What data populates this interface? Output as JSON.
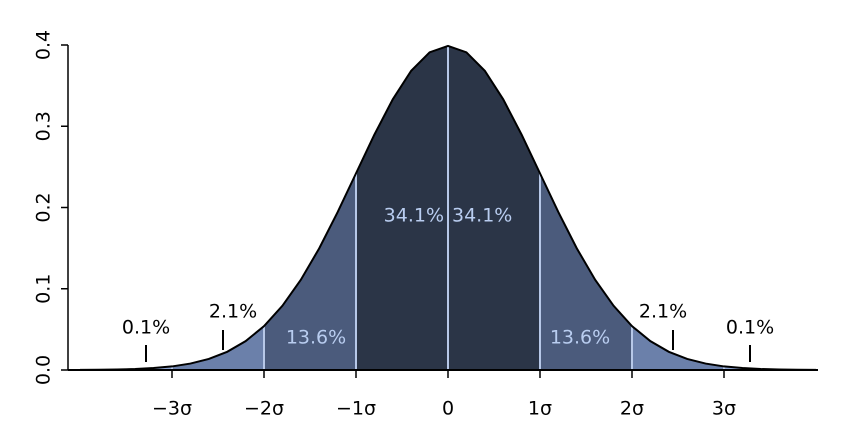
{
  "chart_data": {
    "type": "density",
    "x": [
      -4,
      -3.8,
      -3.6,
      -3.4,
      -3.2,
      -3,
      -2.8,
      -2.6,
      -2.4,
      -2.2,
      -2,
      -1.8,
      -1.6,
      -1.4,
      -1.2,
      -1,
      -0.8,
      -0.6,
      -0.4,
      -0.2,
      0,
      0.2,
      0.4,
      0.6,
      0.8,
      1,
      1.2,
      1.4,
      1.6,
      1.8,
      2,
      2.2,
      2.4,
      2.6,
      2.8,
      3,
      3.2,
      3.4,
      3.6,
      3.8,
      4
    ],
    "values": [
      0.0001,
      0.0003,
      0.0006,
      0.0012,
      0.0024,
      0.0044,
      0.0079,
      0.0136,
      0.0224,
      0.0355,
      0.054,
      0.079,
      0.1109,
      0.1497,
      0.1942,
      0.242,
      0.2897,
      0.3332,
      0.3683,
      0.391,
      0.3989,
      0.391,
      0.3683,
      0.3332,
      0.2897,
      0.242,
      0.1942,
      0.1497,
      0.1109,
      0.079,
      0.054,
      0.0355,
      0.0224,
      0.0136,
      0.0079,
      0.0044,
      0.0024,
      0.0012,
      0.0006,
      0.0003,
      0.0001
    ],
    "color": "#000000",
    "regions": {
      "bounds": [
        -4,
        -3,
        -2,
        -1,
        0,
        1,
        2,
        3,
        4
      ],
      "colors": [
        "#8ca3d0",
        "#6b80aa",
        "#4b5b7c",
        "#2b3547",
        "#2b3547",
        "#4b5b7c",
        "#6b80aa",
        "#8ca3d0"
      ],
      "values": [
        0.1,
        2.1,
        13.6,
        34.1,
        34.1,
        13.6,
        2.1,
        0.1
      ],
      "value_labels": [
        "0.1%",
        "2.1%",
        "13.6%",
        "34.1%",
        "34.1%",
        "13.6%",
        "2.1%",
        "0.1%"
      ]
    },
    "xlim": [
      -4,
      4
    ],
    "xticks": [
      {
        "value": -3,
        "label": "−3σ"
      },
      {
        "value": -2,
        "label": "−2σ"
      },
      {
        "value": -1,
        "label": "−1σ"
      },
      0,
      {
        "value": 1,
        "label": "1σ"
      },
      {
        "value": 2,
        "label": "2σ"
      },
      {
        "value": 3,
        "label": "3σ"
      }
    ],
    "ylim": [
      0,
      0.4
    ],
    "yticks": [
      {
        "value": 0,
        "label": "0.0"
      },
      0.1,
      0.2,
      0.3,
      0.4
    ]
  }
}
